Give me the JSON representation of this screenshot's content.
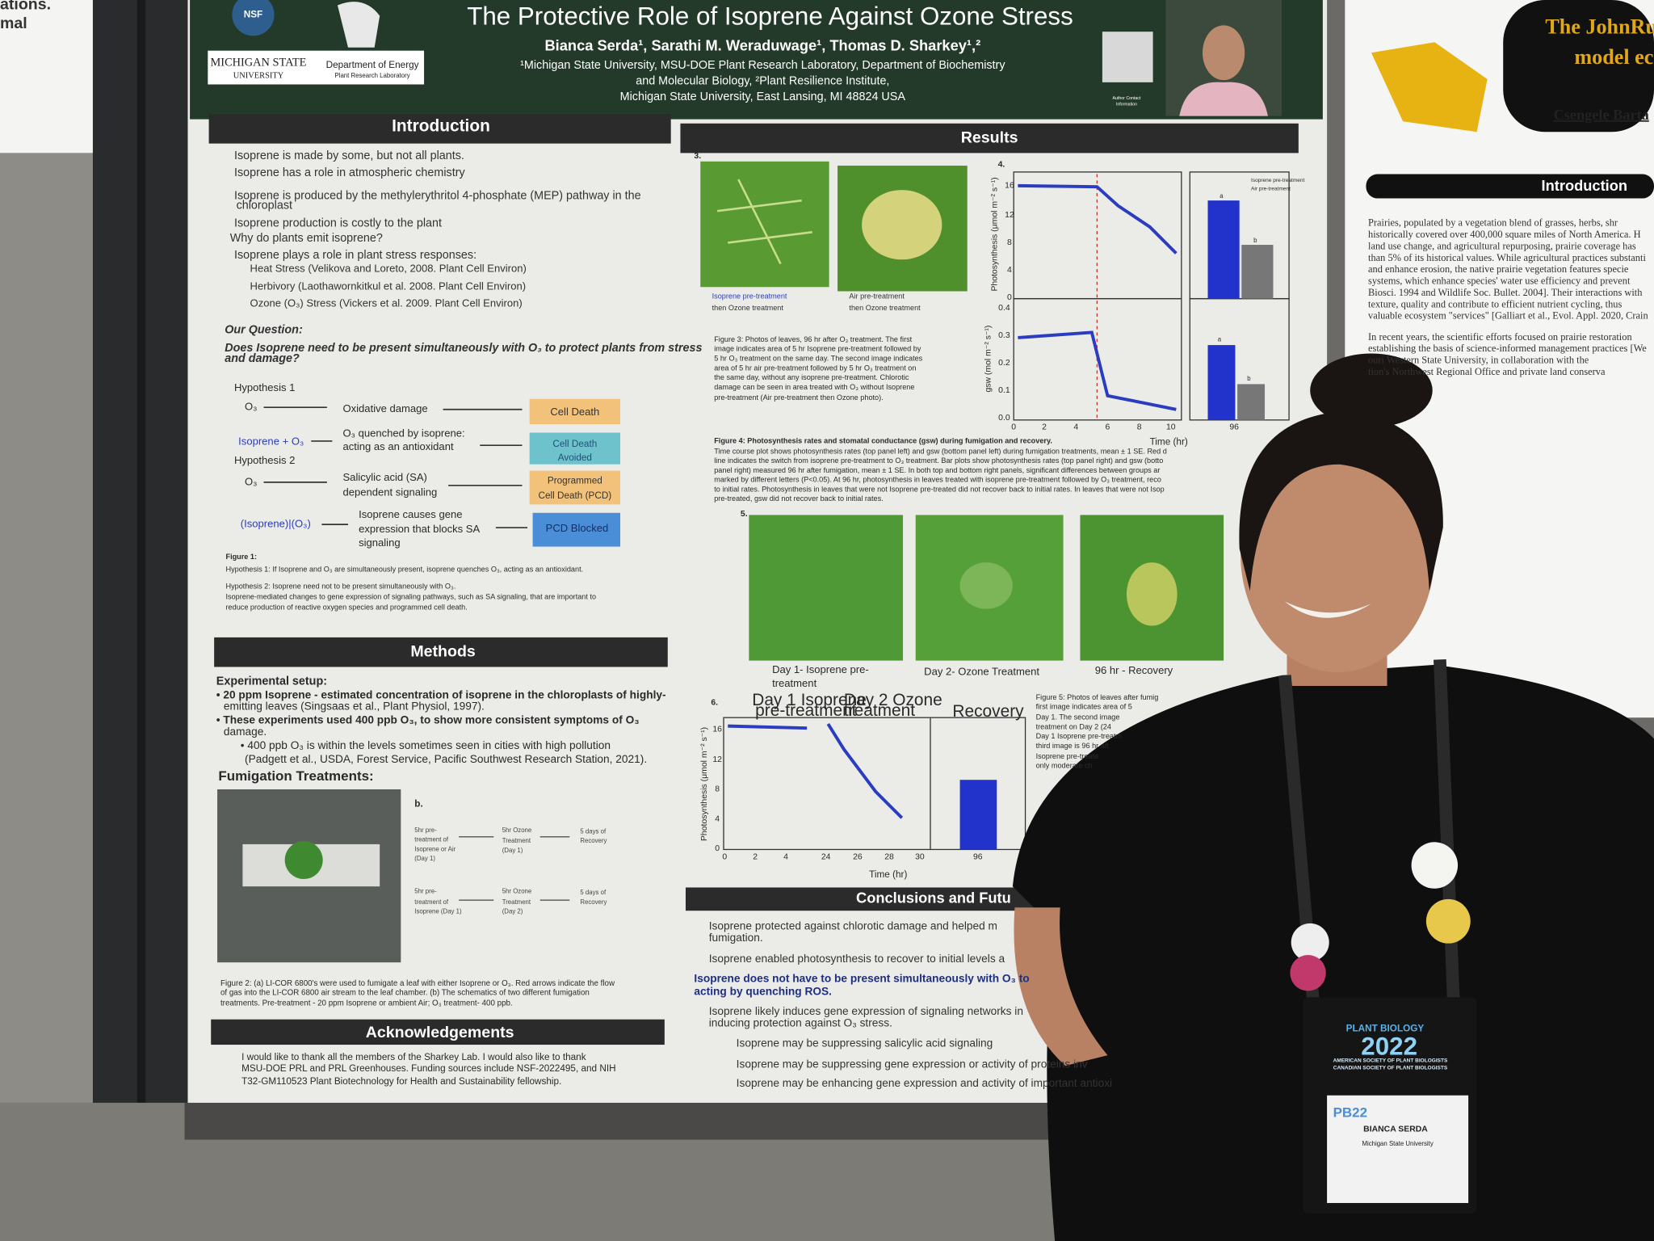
{
  "left_edge": {
    "lines": [
      "ations.",
      "mal"
    ]
  },
  "poster": {
    "title": "The Protective Role of Isoprene Against Ozone Stress",
    "authors": "Bianca Serda¹, Sarathi M. Weraduwage¹, Thomas D. Sharkey¹,²",
    "affiliation": [
      "¹Michigan State University, MSU-DOE Plant Research Laboratory, Department of Biochemistry",
      "and Molecular Biology, ²Plant Resilience Institute,",
      "Michigan State University, East Lansing, MI 48824 USA"
    ],
    "logos": [
      "NSF",
      "MICHIGAN STATE",
      "UNIVERSITY",
      "Department of Energy",
      "Plant Research Laboratory"
    ],
    "contact_note": [
      "Author Contact",
      "Information"
    ]
  },
  "introduction": {
    "heading": "Introduction",
    "bullets": [
      "Isoprene is made by some, but not all plants.",
      "Isoprene has a role in atmospheric chemistry",
      "Isoprene is produced by the methylerythritol 4-phosphate (MEP) pathway in the",
      "chloroplast",
      "Isoprene production is costly to the plant",
      "Why do plants emit isoprene?",
      "Isoprene plays a role in plant stress responses:"
    ],
    "sub_bullets": [
      "Heat Stress (Velikova and Loreto, 2008. Plant Cell Environ)",
      "Herbivory (Laothawornkitkul et al. 2008. Plant Cell Environ)",
      "Ozone (O₃) Stress (Vickers et al. 2009. Plant Cell Environ)"
    ],
    "question_label": "Our Question:",
    "question": [
      "Does Isoprene need to be present simultaneously with O₃ to protect plants from stress",
      "and damage?"
    ]
  },
  "hypotheses": {
    "h1": "Hypothesis 1",
    "h2": "Hypothesis 2",
    "o3_a": "O₃",
    "damage": "Oxidative damage",
    "box1": "Cell Death",
    "iso_o3": "Isoprene + O₃",
    "quench": [
      "O₃ quenched by isoprene:",
      "acting as an antioxidant"
    ],
    "box2": [
      "Cell Death",
      "Avoided"
    ],
    "o3_b": "O₃",
    "sa": [
      "Salicylic acid (SA)",
      "dependent signaling"
    ],
    "box3": [
      "Programmed",
      "Cell Death (PCD)"
    ],
    "iso_pipe": "(Isoprene)|(O₃)",
    "gene": [
      "Isoprene causes gene",
      "expression that blocks SA",
      "signaling"
    ],
    "box4": "PCD Blocked",
    "caption": [
      "Figure 1:",
      "Hypothesis 1: If Isoprene and O₃ are simultaneously present, isoprene quenches O₃, acting as an antioxidant.",
      "Hypothesis 2: Isoprene need not to be present simultaneously with O₃.",
      "Isoprene-mediated changes to gene expression of signaling pathways, such as SA signaling, that are important to",
      "reduce production of reactive oxygen species and programmed cell death."
    ]
  },
  "methods": {
    "heading": "Methods",
    "setup": "Experimental setup:",
    "lines": [
      "• 20 ppm Isoprene - estimated concentration of isoprene in the chloroplasts of highly-",
      "emitting leaves (Singsaas et al., Plant Physiol, 1997).",
      "• These experiments used 400 ppb O₃, to show more consistent symptoms of O₃",
      "damage.",
      "• 400 ppb O₃ is within the levels sometimes seen in cities with high pollution",
      "(Padgett et al., USDA, Forest Service, Pacific Southwest Research Station, 2021)."
    ],
    "fumigation": "Fumigation Treatments:",
    "panel_b": "b.",
    "schematic": [
      "5hr pre-",
      "treatment of",
      "Isoprene or Air",
      "(Day 1)",
      "5hr Ozone",
      "Treatment",
      "(Day 1)",
      "5 days of",
      "Recovery",
      "5hr pre-",
      "treatment of",
      "Isoprene (Day 1)",
      "5hr Ozone",
      "Treatment",
      "(Day 2)",
      "5 days of",
      "Recovery"
    ],
    "caption": [
      "Figure 2: (a) LI-COR 6800's were used to fumigate a leaf with either Isoprene or O₃. Red arrows indicate the flow",
      "of gas into the LI-COR 6800 air stream to the leaf chamber. (b) The schematics of two different fumigation",
      "treatments. Pre-treatment - 20 ppm Isoprene or ambient Air; O₃ treatment- 400 ppb."
    ]
  },
  "acknowledgements": {
    "heading": "Acknowledgements",
    "lines": [
      "I would like to thank all the members of the Sharkey Lab. I would also like to thank",
      "MSU-DOE PRL and PRL Greenhouses. Funding sources include NSF-2022495, and NIH",
      "T32-GM110523 Plant Biotechnology for Health and Sustainability fellowship."
    ]
  },
  "results": {
    "heading": "Results",
    "fig3": {
      "number": "3.",
      "captions": [
        "Isoprene pre-treatment",
        "then Ozone treatment",
        "Air pre-treatment",
        "then Ozone treatment"
      ],
      "text": [
        "Figure 3: Photos of leaves, 96 hr after O₃ treatment. The first",
        "image indicates area of 5 hr Isoprene pre-treatment followed by",
        "5 hr O₃ treatment on the same day. The second image indicates",
        "area of 5 hr air pre-treatment followed by 5 hr O₃ treatment on",
        "the same day, without any isoprene pre-treatment. Chlorotic",
        "damage can be seen in area treated with O₃ without Isoprene",
        "pre-treatment (Air pre-treatment then Ozone photo)."
      ]
    },
    "fig4": {
      "number": "4.",
      "ylabel_top": "Photosynthesis (μmol m⁻² s⁻¹)",
      "ylabel_bottom": "gsw (mol m⁻² s⁻¹)",
      "yticks_top": [
        "16",
        "12",
        "8",
        "4",
        "0"
      ],
      "yticks_bottom": [
        "0.4",
        "0.3",
        "0.2",
        "0.1",
        "0.0"
      ],
      "xticks": [
        "0",
        "2",
        "4",
        "6",
        "8",
        "10"
      ],
      "xtick_bar": "96",
      "xlabel": "Time (hr)",
      "legend": [
        "Isoprene pre-treatment",
        "Air pre-treatment"
      ],
      "bar_letters": [
        "a",
        "b",
        "a",
        "b"
      ],
      "text": [
        "Figure 4: Photosynthesis rates and stomatal conductance (gsw) during fumigation and recovery.",
        "Time course plot shows photosynthesis rates (top panel left) and gsw (bottom panel left) during fumigation treatments, mean ± 1 SE. Red d",
        "line indicates the switch from isoprene pre-treatment to O₃ treatment. Bar plots show photosynthesis rates (top panel right) and gsw (botto",
        "panel right) measured 96 hr after fumigation, mean ± 1 SE. In both top and bottom right panels, significant differences between groups ar",
        "marked by different letters (P<0.05). At 96 hr, photosynthesis in leaves treated with isoprene pre-treatment followed by O₃ treatment, reco",
        "to initial rates. Photosynthesis in leaves that were not Isoprene pre-treated did not recover back to initial rates. In leaves that were not Isop",
        "pre-treated, gsw did not recover back to initial rates."
      ]
    },
    "fig5": {
      "number": "5.",
      "captions": [
        "Day 1- Isoprene pre-",
        "treatment",
        "Day 2- Ozone Treatment",
        "96 hr - Recovery"
      ],
      "text": [
        "Figure 5: Photos of leaves after fumig",
        "first image indicates area of 5",
        "Day 1. The second image",
        "treatment on Day 2 (24",
        "Day 1 Isoprene pre-treatm",
        "third image is 96 hr aft",
        "Isoprene pre-treate",
        "only moderate ch"
      ]
    },
    "fig6": {
      "number": "6.",
      "labels": [
        "Day 1 Isoprene",
        "pre-treatment",
        "Day 2 Ozone",
        "treatment",
        "Recovery"
      ],
      "ylabel": "Photosynthesis (μmol m⁻² s⁻¹)",
      "yticks": [
        "16",
        "12",
        "8",
        "4",
        "0"
      ],
      "xticks": [
        "0",
        "2",
        "4",
        "24",
        "26",
        "28",
        "30",
        "96"
      ],
      "xlabel": "Time (hr)"
    }
  },
  "conclusions": {
    "heading": "Conclusions and Futu",
    "lines": [
      "Isoprene protected against chlorotic damage and helped m",
      "fumigation.",
      "Isoprene enabled photosynthesis to recover to initial levels a",
      "Isoprene does not have to be present simultaneously with O₃ to",
      "acting by quenching ROS.",
      "Isoprene likely induces gene expression of signaling networks in",
      "inducing protection against O₃ stress.",
      "Isoprene may be suppressing salicylic acid signaling",
      "Isoprene may be suppressing gene expression or activity of proteins inv",
      "Isoprene may be enhancing gene expression and activity of important antioxi"
    ]
  },
  "badge": {
    "event": "PLANT BIOLOGY",
    "year": "2022",
    "societies": [
      "AMERICAN SOCIETY OF PLANT BIOLOGISTS",
      "CANADIAN SOCIETY OF PLANT BIOLOGISTS"
    ],
    "short": "PB22",
    "name": "BIANCA SERDA",
    "institution": "Michigan State University"
  },
  "right_poster": {
    "title": [
      "The JohnRu",
      "model ec"
    ],
    "author": "Csengele Barta",
    "heading": "Introduction",
    "lines": [
      "Prairies, populated by a vegetation blend of grasses, herbs, shr",
      "historically covered over 400,000 square miles of North America. H",
      "land use change, and agricultural repurposing, prairie coverage has",
      "than 5% of its historical values. While agricultural practices substanti",
      "and enhance erosion, the native prairie vegetation features specie",
      "systems, which enhance species' water use efficiency and prevent",
      "Biosci. 1994 and Wildlife Soc. Bullet. 2004]. Their interactions with",
      "texture, quality and contribute to efficient nutrient cycling, thus",
      "valuable ecosystem \"services\" [Galliart et al., Evol. Appl. 2020, Crain",
      "In recent years, the scientific efforts focused on prairie restoration",
      "establishing the basis of science-informed management practices [We",
      "ouri Western State University, in collaboration with the",
      "tion's Northwest Regional Office and private land conserva"
    ]
  }
}
